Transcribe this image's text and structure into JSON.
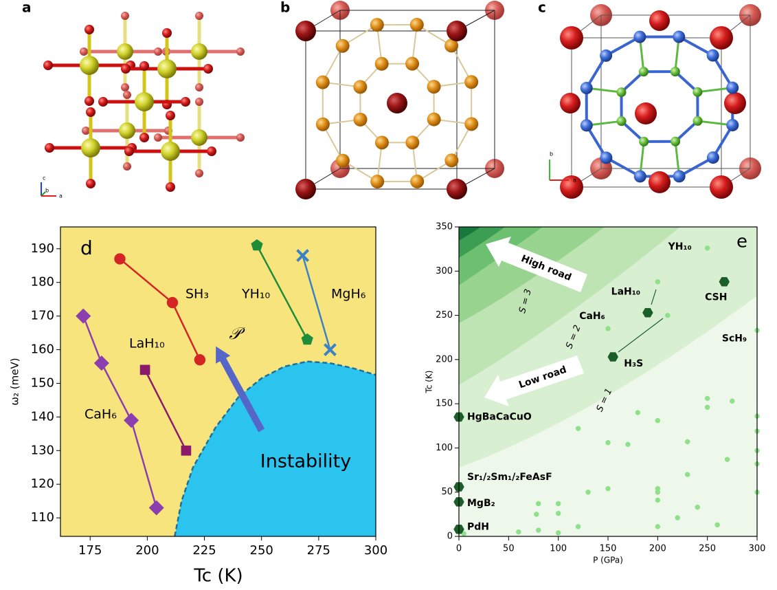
{
  "panels": {
    "a": {
      "label": "a",
      "axes": [
        "c",
        "b",
        "a"
      ]
    },
    "b": {
      "label": "b"
    },
    "c": {
      "label": "c",
      "axes": [
        "b",
        "a"
      ]
    }
  },
  "chart_data": [
    {
      "type": "line",
      "panel": "d",
      "xlabel": "Tc (K)",
      "ylabel": "ω₂ (meV)",
      "xlim": [
        162,
        300
      ],
      "ylim": [
        104.5,
        196.5
      ],
      "xticks": [
        175,
        200,
        225,
        250,
        275,
        300
      ],
      "yticks": [
        110,
        120,
        130,
        140,
        150,
        160,
        170,
        180,
        190
      ],
      "background": "#f8e47c",
      "series": [
        {
          "name": "SH₃",
          "color": "#d42424",
          "marker": "circle",
          "x": [
            188,
            211,
            223
          ],
          "values": [
            187,
            174,
            157
          ]
        },
        {
          "name": "YH₁₀",
          "color": "#1f8c3a",
          "marker": "pentagon",
          "x": [
            248,
            270
          ],
          "values": [
            191,
            163
          ]
        },
        {
          "name": "MgH₆",
          "color": "#3b82c4",
          "marker": "x",
          "x": [
            268,
            280
          ],
          "values": [
            188,
            160
          ]
        },
        {
          "name": "LaH₁₀",
          "color": "#8b1a6b",
          "marker": "square",
          "x": [
            199,
            217
          ],
          "values": [
            154,
            130
          ]
        },
        {
          "name": "CaH₆",
          "color": "#8b3fae",
          "marker": "diamond",
          "x": [
            172,
            180,
            193,
            204
          ],
          "values": [
            170,
            156,
            139,
            113
          ]
        }
      ],
      "region": {
        "name": "Instability",
        "color": "#2bc4ef",
        "x": [
          212,
          215,
          220,
          230,
          240,
          250,
          260,
          270,
          280,
          290,
          300
        ],
        "values": [
          104.5,
          115,
          125,
          137,
          146,
          151.5,
          155,
          156.5,
          156,
          154.5,
          152.5
        ]
      },
      "arrow": {
        "label": "𝒫",
        "color": "#5566c8",
        "x": [
          250,
          230
        ],
        "values": [
          136,
          161
        ]
      }
    },
    {
      "type": "scatter",
      "panel": "e",
      "xlabel": "P (GPa)",
      "ylabel": "Tc (K)",
      "xlim": [
        0,
        300
      ],
      "ylim": [
        0,
        350
      ],
      "xticks": [
        0,
        50,
        100,
        150,
        200,
        250,
        300
      ],
      "yticks": [
        0,
        50,
        100,
        150,
        200,
        250,
        300,
        350
      ],
      "contour_labels": [
        "S = 1",
        "S = 2",
        "S = 3"
      ],
      "roads": [
        "High road",
        "Low road"
      ],
      "series": [
        {
          "color": "#8fe08a",
          "marker": "circle",
          "x": [
            250,
            200,
            210,
            150,
            300,
            180,
            200,
            250,
            250,
            275,
            300,
            300,
            300,
            300,
            300,
            120,
            150,
            170,
            200,
            200,
            200,
            230,
            230,
            270,
            240,
            150,
            130,
            220,
            80,
            78,
            100,
            100,
            60,
            80,
            100,
            120,
            200,
            260,
            5
          ],
          "values": [
            326,
            288,
            250,
            235,
            233,
            140,
            131,
            156,
            146,
            153,
            136,
            119,
            97,
            82,
            50,
            122,
            106,
            104,
            54,
            50,
            41,
            107,
            70,
            87,
            33,
            54,
            50,
            21,
            37,
            25,
            37,
            26,
            5,
            7,
            4,
            11,
            11,
            13,
            3
          ],
          "labels": [
            "YH₁₀",
            null,
            null,
            "CaH₆",
            "ScH₉",
            null,
            null,
            null,
            null,
            null,
            null,
            null,
            null,
            null,
            null,
            null,
            null,
            null,
            null,
            null,
            null,
            null,
            null,
            null,
            null,
            null,
            null,
            null,
            null,
            null,
            null,
            null,
            null,
            null,
            null,
            null,
            null,
            null,
            null
          ]
        },
        {
          "color": "#1a5e2a",
          "marker": "hexagon",
          "x": [
            0,
            0,
            0,
            0,
            190,
            155,
            267
          ],
          "values": [
            135,
            56,
            39,
            8,
            253,
            203,
            288
          ],
          "labels": [
            "HgBaCaCuO",
            "Sr₁/₂Sm₁/₂FeAsF",
            "MgB₂",
            "PdH",
            "LaH₁₀",
            "H₃S",
            "CSH"
          ]
        }
      ]
    }
  ]
}
